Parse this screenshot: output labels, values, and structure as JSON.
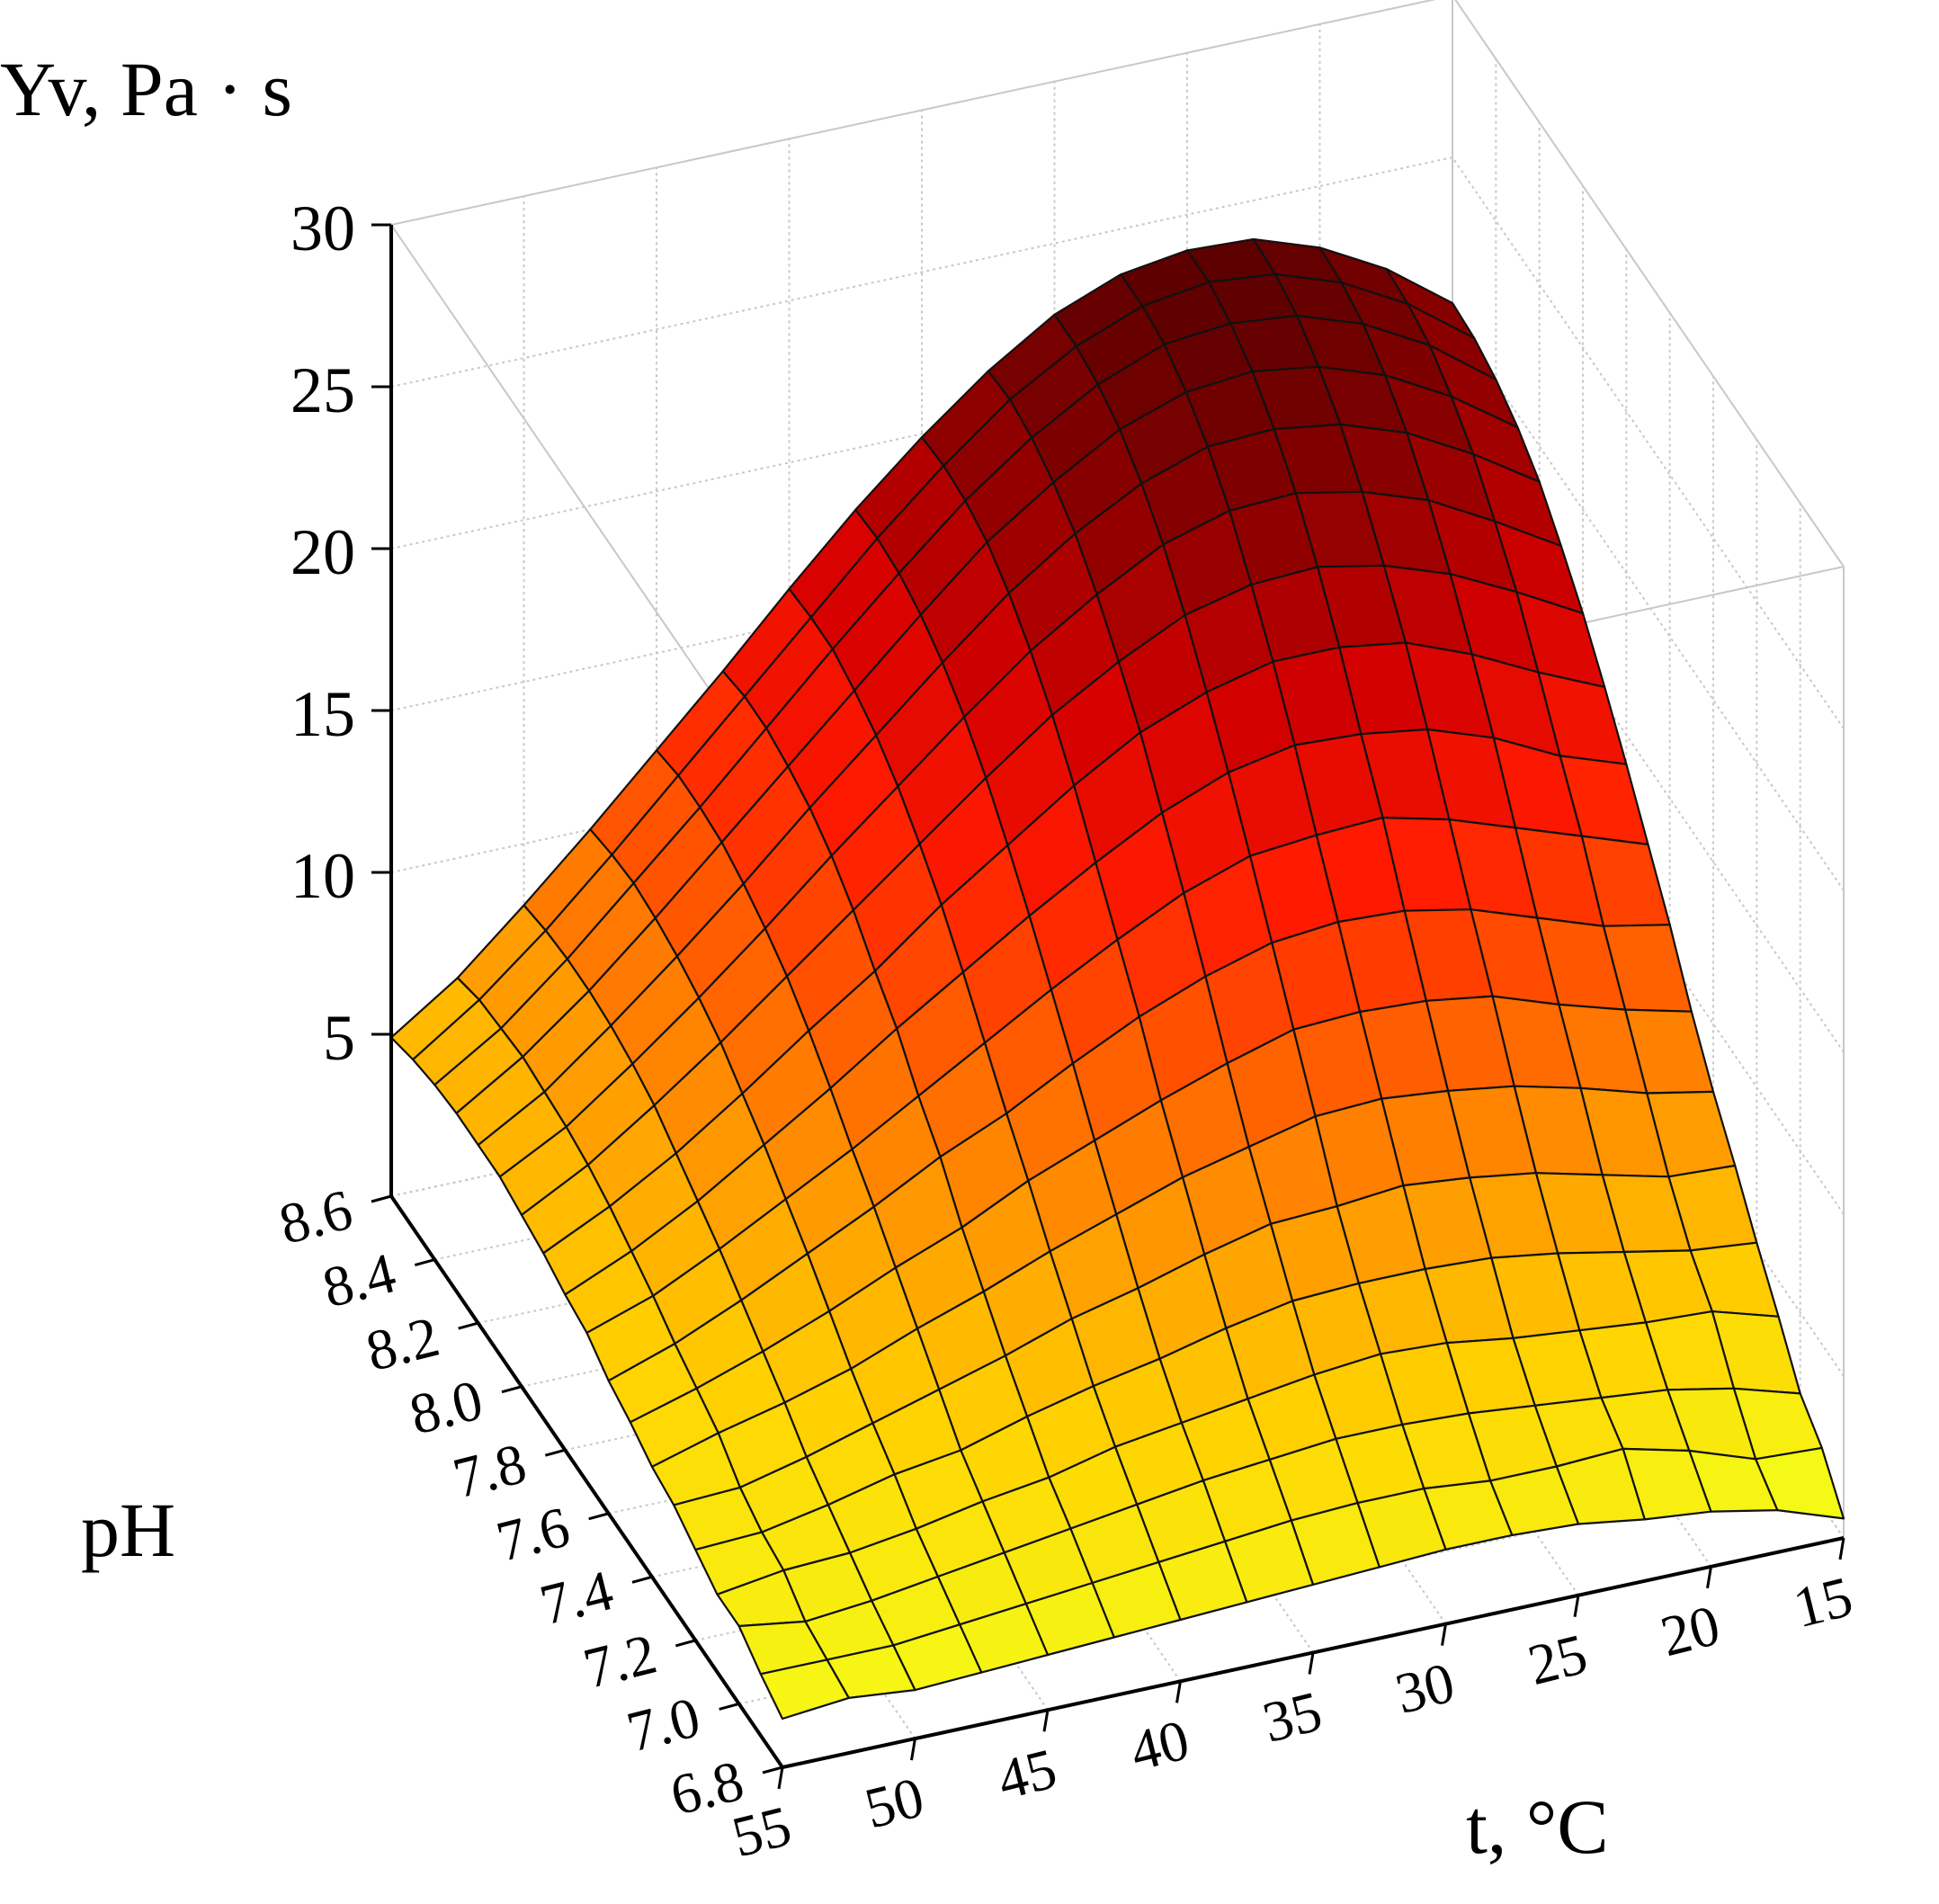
{
  "chart_data": {
    "type": "surface",
    "zlabel": "Yv, Pa · s",
    "xlabel": "t, °C",
    "ylabel": "pH",
    "x_ticks": [
      "55",
      "50",
      "45",
      "40",
      "35",
      "30",
      "25",
      "20",
      "15"
    ],
    "y_ticks": [
      "6.8",
      "7.0",
      "7.2",
      "7.4",
      "7.6",
      "7.8",
      "8.0",
      "8.2",
      "8.4",
      "8.6"
    ],
    "z_ticks": [
      "5",
      "10",
      "15",
      "20",
      "25",
      "30"
    ],
    "xlim": [
      15,
      55
    ],
    "ylim": [
      6.8,
      8.6
    ],
    "zlim": [
      0,
      30
    ],
    "grid": true,
    "colormap": [
      "#f3ff19",
      "#ffd400",
      "#ff9a00",
      "#ff5a00",
      "#ff1a00",
      "#d40000",
      "#8f0000",
      "#5a0000"
    ],
    "grid_t": [
      15,
      17.5,
      20,
      22.5,
      25,
      27.5,
      30,
      32.5,
      35,
      37.5,
      40,
      42.5,
      45,
      47.5,
      50,
      52.5,
      55
    ],
    "grid_ph": [
      6.8,
      6.9,
      7.0,
      7.1,
      7.2,
      7.3,
      7.4,
      7.5,
      7.6,
      7.7,
      7.8,
      7.9,
      8.0,
      8.1,
      8.2,
      8.3,
      8.4,
      8.5,
      8.6
    ],
    "surface_z": [
      [
        0.6,
        1.3,
        1.7,
        1.9,
        2.2,
        2.3,
        2.3,
        2.2,
        2.1,
        2.0,
        1.9,
        1.8,
        1.7,
        1.6,
        1.5,
        1.7,
        1.5
      ],
      [
        1.8,
        1.9,
        2.6,
        3.1,
        3.0,
        3.0,
        3.2,
        3.2,
        3.1,
        2.9,
        2.7,
        2.5,
        2.3,
        2.1,
        1.9,
        1.9,
        1.9
      ],
      [
        2.5,
        3.1,
        3.5,
        3.7,
        3.9,
        4.1,
        4.2,
        4.2,
        4.0,
        3.8,
        3.5,
        3.2,
        2.9,
        2.6,
        2.3,
        2.1,
        2.4
      ],
      [
        3.9,
        4.5,
        4.6,
        4.8,
        5.0,
        5.3,
        5.4,
        5.2,
        4.9,
        4.6,
        4.3,
        3.8,
        3.5,
        3.1,
        2.8,
        2.7,
        2.4
      ],
      [
        5.2,
        5.4,
        5.8,
        6.2,
        6.5,
        6.6,
        6.6,
        6.5,
        6.1,
        5.6,
        5.2,
        4.7,
        4.1,
        3.8,
        3.3,
        2.9,
        2.8
      ],
      [
        6.6,
        6.7,
        7.2,
        7.7,
        8.0,
        8.2,
        8.0,
        7.9,
        7.4,
        6.8,
        6.3,
        5.6,
        5.0,
        4.4,
        3.8,
        3.3,
        3.2
      ],
      [
        7.9,
        8.3,
        8.9,
        9.4,
        9.7,
        9.9,
        9.8,
        9.3,
        8.8,
        8.1,
        7.4,
        6.6,
        5.9,
        5.1,
        4.5,
        4.0,
        3.4
      ],
      [
        9.4,
        9.9,
        10.5,
        11.2,
        11.5,
        11.6,
        11.5,
        10.9,
        10.2,
        9.4,
        8.6,
        7.6,
        6.8,
        5.9,
        5.1,
        4.4,
        3.8
      ],
      [
        11.1,
        11.5,
        12.2,
        12.9,
        13.3,
        13.4,
        13.2,
        12.6,
        11.8,
        10.8,
        9.7,
        8.8,
        7.7,
        6.7,
        5.7,
        4.8,
        4.1
      ],
      [
        12.6,
        13.3,
        14.0,
        14.7,
        15.2,
        15.1,
        14.9,
        14.2,
        13.2,
        12.1,
        10.9,
        9.7,
        8.5,
        7.4,
        6.3,
        5.3,
        4.6
      ],
      [
        14.1,
        14.8,
        15.8,
        16.5,
        16.8,
        16.9,
        16.5,
        15.7,
        14.6,
        13.4,
        12.1,
        10.8,
        9.4,
        8.1,
        6.8,
        5.7,
        4.8
      ],
      [
        15.5,
        16.4,
        17.4,
        18.2,
        18.5,
        18.5,
        18.0,
        17.2,
        16.0,
        14.6,
        13.2,
        11.6,
        10.2,
        8.7,
        7.3,
        6.1,
        5.1
      ],
      [
        16.8,
        17.9,
        18.9,
        19.6,
        20.0,
        19.9,
        19.4,
        18.4,
        17.2,
        15.7,
        14.1,
        12.5,
        10.9,
        9.3,
        7.8,
        6.4,
        5.3
      ],
      [
        17.9,
        19.1,
        20.2,
        20.9,
        21.3,
        21.2,
        20.6,
        19.5,
        18.2,
        16.6,
        14.9,
        13.2,
        11.4,
        9.7,
        8.1,
        6.6,
        5.5
      ],
      [
        18.9,
        20.2,
        21.3,
        22.0,
        22.3,
        22.2,
        21.5,
        20.4,
        19.0,
        17.3,
        15.5,
        13.7,
        11.8,
        10.0,
        8.3,
        6.7,
        5.5
      ],
      [
        19.6,
        21.0,
        22.1,
        22.8,
        23.1,
        22.9,
        22.2,
        21.0,
        19.6,
        17.8,
        15.9,
        14.0,
        12.1,
        10.2,
        8.4,
        6.8,
        5.5
      ],
      [
        20.1,
        21.6,
        22.7,
        23.4,
        23.6,
        23.4,
        22.6,
        21.4,
        19.9,
        18.1,
        16.2,
        14.2,
        12.2,
        10.3,
        8.4,
        6.7,
        5.4
      ],
      [
        20.4,
        21.9,
        23.0,
        23.7,
        23.9,
        23.6,
        22.8,
        21.6,
        20.0,
        18.2,
        16.2,
        14.2,
        12.2,
        10.2,
        8.3,
        6.6,
        5.2
      ],
      [
        20.5,
        22.0,
        23.1,
        23.8,
        23.9,
        23.6,
        22.8,
        21.5,
        19.9,
        18.1,
        16.1,
        14.0,
        12.0,
        10.0,
        8.1,
        6.3,
        4.9
      ]
    ]
  }
}
